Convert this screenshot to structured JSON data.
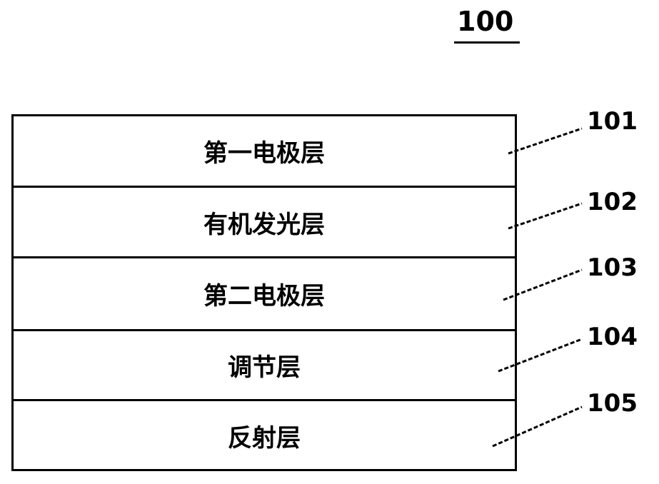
{
  "figure_label": "100",
  "layers": [
    {
      "label": "第一电极层",
      "ref": "101"
    },
    {
      "label": "有机发光层",
      "ref": "102"
    },
    {
      "label": "第二电极层",
      "ref": "103"
    },
    {
      "label": "调节层",
      "ref": "104"
    },
    {
      "label": "反射层",
      "ref": "105"
    }
  ]
}
